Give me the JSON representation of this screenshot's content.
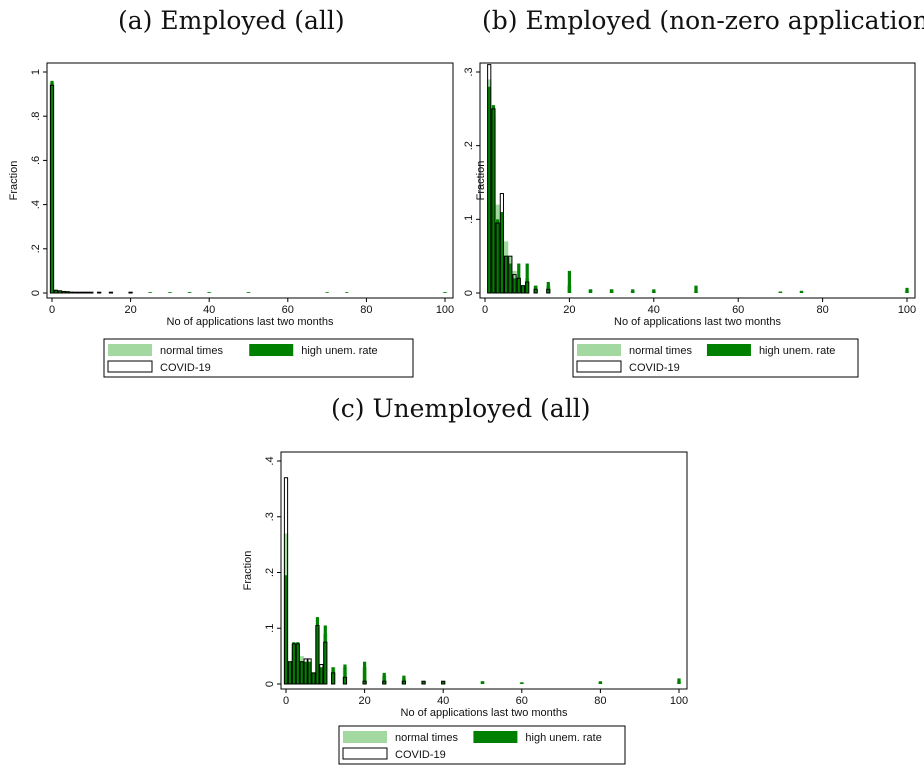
{
  "legend_labels": {
    "normal": "normal times",
    "high": "high unem. rate",
    "covid": "COVID-19"
  },
  "colors": {
    "normal": "#a3d9a1",
    "high": "#008000",
    "covid": "#000000",
    "frame": "#000000"
  },
  "chart_data": [
    {
      "type": "bar",
      "title": "(a) Employed (all)",
      "xlabel": "No of applications last two months",
      "ylabel": "Fraction",
      "xlim": [
        0,
        100
      ],
      "ylim": [
        0,
        1
      ],
      "xticks": [
        0,
        20,
        40,
        60,
        80,
        100
      ],
      "yticks": [
        0,
        0.2,
        0.4,
        0.6,
        0.8,
        1
      ],
      "yticklabels": [
        "0",
        ".2",
        ".4",
        ".6",
        ".8",
        "1"
      ],
      "grid": false,
      "legend_position": "bottom",
      "x": [
        0,
        1,
        2,
        3,
        4,
        5,
        6,
        7,
        8,
        9,
        10,
        12,
        15,
        20,
        25,
        30,
        35,
        40,
        50,
        70,
        75,
        100
      ],
      "series": [
        {
          "name": "normal times",
          "key": "normal",
          "values": [
            0.95,
            0.01,
            0.008,
            0.006,
            0.004,
            0.003,
            0.003,
            0.002,
            0.002,
            0.002,
            0.003,
            0.002,
            0.002,
            0.002,
            0.002,
            0.001,
            0.001,
            0.001,
            0.001,
            0.0,
            0.0,
            0.001
          ]
        },
        {
          "name": "high unem. rate",
          "key": "high",
          "values": [
            0.96,
            0.015,
            0.01,
            0.006,
            0.005,
            0.004,
            0.003,
            0.002,
            0.002,
            0.002,
            0.003,
            0.002,
            0.002,
            0.003,
            0.003,
            0.002,
            0.002,
            0.002,
            0.002,
            0.001,
            0.001,
            0.002
          ]
        },
        {
          "name": "COVID-19",
          "key": "covid",
          "values": [
            0.94,
            0.012,
            0.01,
            0.007,
            0.006,
            0.004,
            0.003,
            0.002,
            0.002,
            0.002,
            0.002,
            0.001,
            0.001,
            0.001,
            0.0,
            0.0,
            0.0,
            0.0,
            0.0,
            0.0,
            0.0,
            0.0
          ]
        }
      ]
    },
    {
      "type": "bar",
      "title": "(b) Employed (non-zero applications)",
      "xlabel": "No of applications last two months",
      "ylabel": "Fraction",
      "xlim": [
        0,
        100
      ],
      "ylim": [
        0,
        0.3
      ],
      "xticks": [
        0,
        20,
        40,
        60,
        80,
        100
      ],
      "yticks": [
        0,
        0.1,
        0.2,
        0.3
      ],
      "yticklabels": [
        "0",
        ".1",
        ".2",
        ".3"
      ],
      "grid": false,
      "legend_position": "bottom",
      "x": [
        1,
        2,
        3,
        4,
        5,
        6,
        7,
        8,
        9,
        10,
        12,
        15,
        20,
        25,
        30,
        35,
        40,
        50,
        70,
        75,
        100
      ],
      "series": [
        {
          "name": "normal times",
          "key": "normal",
          "values": [
            0.29,
            0.24,
            0.12,
            0.1,
            0.07,
            0.05,
            0.03,
            0.02,
            0.01,
            0.02,
            0.01,
            0.01,
            0.01,
            0.005,
            0.005,
            0.003,
            0.003,
            0.003,
            0.002,
            0.002,
            0.003
          ]
        },
        {
          "name": "high unem. rate",
          "key": "high",
          "values": [
            0.28,
            0.255,
            0.1,
            0.11,
            0.05,
            0.04,
            0.02,
            0.04,
            0.01,
            0.04,
            0.01,
            0.015,
            0.03,
            0.005,
            0.005,
            0.005,
            0.005,
            0.01,
            0.002,
            0.003,
            0.007
          ]
        },
        {
          "name": "COVID-19",
          "key": "covid",
          "values": [
            0.31,
            0.25,
            0.095,
            0.135,
            0.05,
            0.05,
            0.025,
            0.02,
            0.01,
            0.015,
            0.005,
            0.005,
            0.0,
            0.0,
            0.0,
            0.0,
            0.0,
            0.0,
            0.0,
            0.0,
            0.0
          ]
        }
      ]
    },
    {
      "type": "bar",
      "title": "(c) Unemployed (all)",
      "xlabel": "No of applications last two months",
      "ylabel": "Fraction",
      "xlim": [
        0,
        100
      ],
      "ylim": [
        0,
        0.4
      ],
      "xticks": [
        0,
        20,
        40,
        60,
        80,
        100
      ],
      "yticks": [
        0,
        0.1,
        0.2,
        0.3,
        0.4
      ],
      "yticklabels": [
        "0",
        ".1",
        ".2",
        ".3",
        ".4"
      ],
      "grid": false,
      "legend_position": "bottom",
      "x": [
        0,
        1,
        2,
        3,
        4,
        5,
        6,
        7,
        8,
        9,
        10,
        12,
        15,
        20,
        25,
        30,
        35,
        40,
        50,
        60,
        80,
        100
      ],
      "series": [
        {
          "name": "normal times",
          "key": "normal",
          "values": [
            0.27,
            0.04,
            0.06,
            0.07,
            0.05,
            0.04,
            0.04,
            0.02,
            0.1,
            0.03,
            0.09,
            0.03,
            0.03,
            0.03,
            0.015,
            0.01,
            0.005,
            0.005,
            0.005,
            0.003,
            0.003,
            0.005
          ]
        },
        {
          "name": "high unem. rate",
          "key": "high",
          "values": [
            0.195,
            0.04,
            0.075,
            0.075,
            0.04,
            0.04,
            0.04,
            0.02,
            0.12,
            0.03,
            0.105,
            0.03,
            0.035,
            0.04,
            0.02,
            0.015,
            0.005,
            0.005,
            0.005,
            0.003,
            0.005,
            0.01
          ]
        },
        {
          "name": "COVID-19",
          "key": "covid",
          "values": [
            0.37,
            0.04,
            0.072,
            0.072,
            0.04,
            0.045,
            0.045,
            0.02,
            0.105,
            0.035,
            0.075,
            0.02,
            0.012,
            0.005,
            0.005,
            0.005,
            0.005,
            0.005,
            0.0,
            0.0,
            0.0,
            0.0
          ]
        }
      ]
    }
  ]
}
